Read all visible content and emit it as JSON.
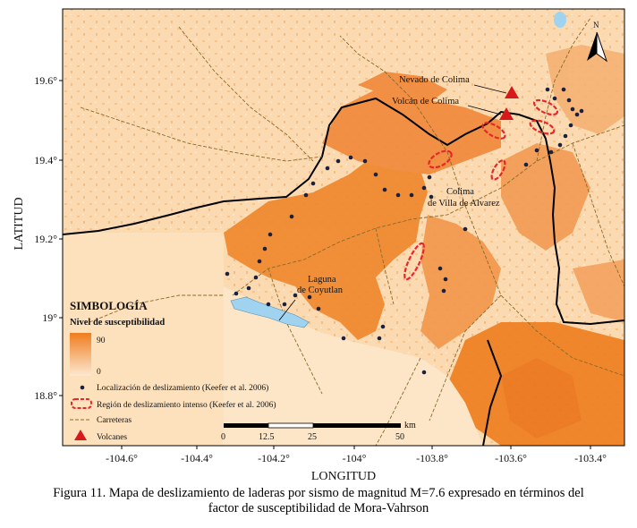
{
  "map": {
    "y_axis_label": "LATITUD",
    "x_axis_label": "LONGITUD",
    "lat_ticks": [
      "19.6°",
      "19.4°",
      "19.2°",
      "19°",
      "18.8°"
    ],
    "lon_ticks": [
      "-104.6°",
      "-104.4°",
      "-104.2°",
      "-104°",
      "-103.8°",
      "-103.6°",
      "-103.4°"
    ],
    "north_label": "N",
    "places": {
      "nevado": "Nevado de Colima",
      "volcan": "Volcán de Colima",
      "colima_1": "Colima",
      "colima_2": "de Villa de Alvarez",
      "laguna_1": "Laguna",
      "laguna_2": "de Coyutlan"
    },
    "colors": {
      "high": "#ef7d1e",
      "low": "#fde0bc",
      "background": "#fbdcb6",
      "border": "#000000",
      "roads": "#8a6a2a",
      "water": "#9fd3ef",
      "volcano": "#d7191c",
      "slide_region": "#e8262a",
      "point": "#1a2040"
    }
  },
  "legend": {
    "title": "SIMBOLOGÍA",
    "subtitle": "Nivel de susceptibilidad",
    "max": "90",
    "min": "0",
    "items": {
      "points": "Localización de deslizamiento (Keefer et al. 2006)",
      "regions": "Región de deslizamiento intenso (Keefer et al. 2006)",
      "roads": "Carreteras",
      "volcanoes": "Volcanes"
    }
  },
  "scale": {
    "unit": "km",
    "labels": [
      "0",
      "12.5",
      "25",
      "50"
    ]
  },
  "caption": {
    "line1": "Figura 11. Mapa de deslizamiento de laderas por sismo de magnitud M=7.6 expresado en términos del",
    "line2": "factor de susceptibilidad de Mora-Vahrson"
  }
}
